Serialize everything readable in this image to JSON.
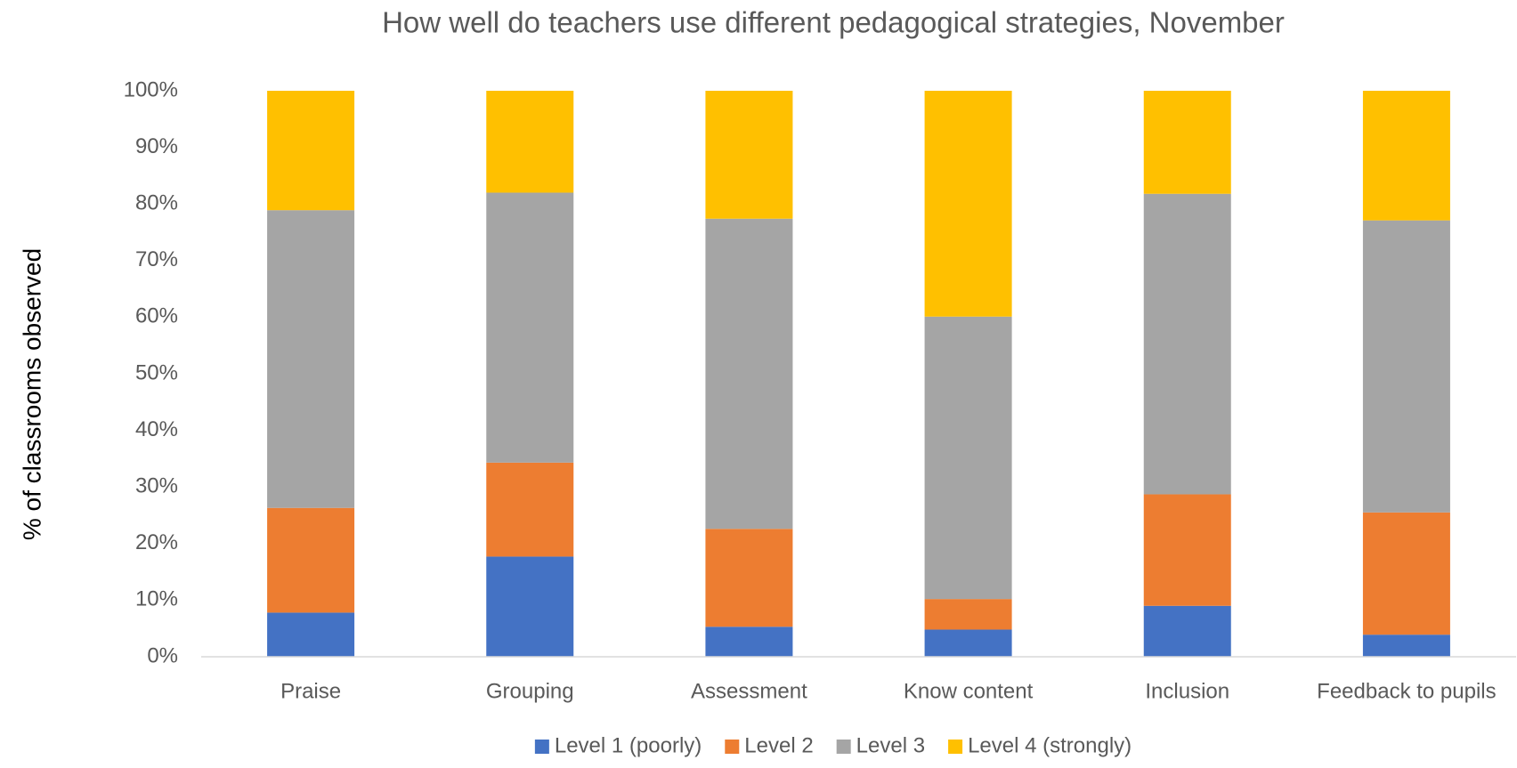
{
  "chart_data": {
    "type": "stacked_bar",
    "title": "How well do teachers use different pedagogical strategies, November",
    "y_label": "% of classrooms observed",
    "categories": [
      "Praise",
      "Grouping",
      "Assessment",
      "Know content",
      "Inclusion",
      "Feedback to pupils"
    ],
    "series": [
      {
        "name": "Level 1 (poorly)",
        "color": "#4472c4",
        "values": [
          7.8,
          17.7,
          5.3,
          4.8,
          9.0,
          3.9
        ]
      },
      {
        "name": "Level 2",
        "color": "#ed7d31",
        "values": [
          18.5,
          16.6,
          17.3,
          5.4,
          19.7,
          21.6
        ]
      },
      {
        "name": "Level 3",
        "color": "#a5a5a5",
        "values": [
          52.6,
          47.7,
          54.8,
          49.9,
          53.1,
          51.6
        ]
      },
      {
        "name": "Level 4 (strongly)",
        "color": "#ffc000",
        "values": [
          21.1,
          18.0,
          22.6,
          39.9,
          18.2,
          22.9
        ]
      }
    ],
    "ylim": [
      0,
      100
    ],
    "yticks": [
      {
        "value": 0,
        "label": "0%"
      },
      {
        "value": 10,
        "label": "10%"
      },
      {
        "value": 20,
        "label": "20%"
      },
      {
        "value": 30,
        "label": "30%"
      },
      {
        "value": 40,
        "label": "40%"
      },
      {
        "value": 50,
        "label": "50%"
      },
      {
        "value": 60,
        "label": "60%"
      },
      {
        "value": 70,
        "label": "70%"
      },
      {
        "value": 80,
        "label": "80%"
      },
      {
        "value": 90,
        "label": "90%"
      },
      {
        "value": 100,
        "label": "100%"
      }
    ],
    "grid": false,
    "legend": "bottom"
  }
}
